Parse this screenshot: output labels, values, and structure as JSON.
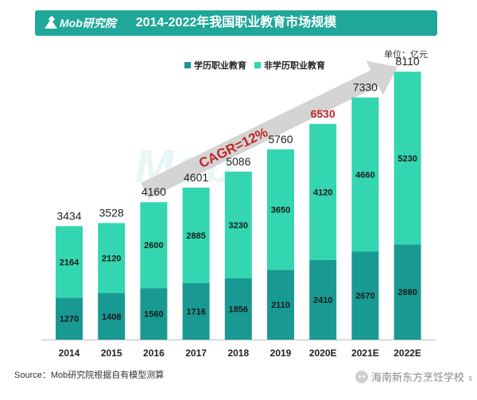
{
  "header": {
    "logo_text": "Mob研究院",
    "title": "2014-2022年我国职业教育市场规模"
  },
  "unit_label": "单位：亿元",
  "watermark": "Mob",
  "annotation": {
    "text": "CAGR=12%",
    "color": "#c0262b"
  },
  "source": "Source：Mob研究院根据自有模型测算",
  "wechat_account": "海南新东方烹饪学校",
  "page_number": "9",
  "chart_data": {
    "type": "bar",
    "stacked": true,
    "title": "2014-2022年我国职业教育市场规模",
    "categories": [
      "2014",
      "2015",
      "2016",
      "2017",
      "2018",
      "2019",
      "2020E",
      "2021E",
      "2022E"
    ],
    "series": [
      {
        "name": "学历职业教育",
        "color": "#189a93",
        "values": [
          1270,
          1408,
          1560,
          1716,
          1856,
          2110,
          2410,
          2670,
          2880
        ]
      },
      {
        "name": "非学历职业教育",
        "color": "#33d6b0",
        "values": [
          2164,
          2120,
          2600,
          2885,
          3230,
          3650,
          4120,
          4660,
          5230
        ]
      }
    ],
    "totals": [
      3434,
      3528,
      4160,
      4601,
      5086,
      5760,
      6530,
      7330,
      8110
    ],
    "highlight_total_index": 6,
    "highlight_color": "#c0262b",
    "ylim": [
      0,
      8500
    ],
    "legend_position": "top-center",
    "grid": false,
    "xlabel": "",
    "ylabel": ""
  }
}
